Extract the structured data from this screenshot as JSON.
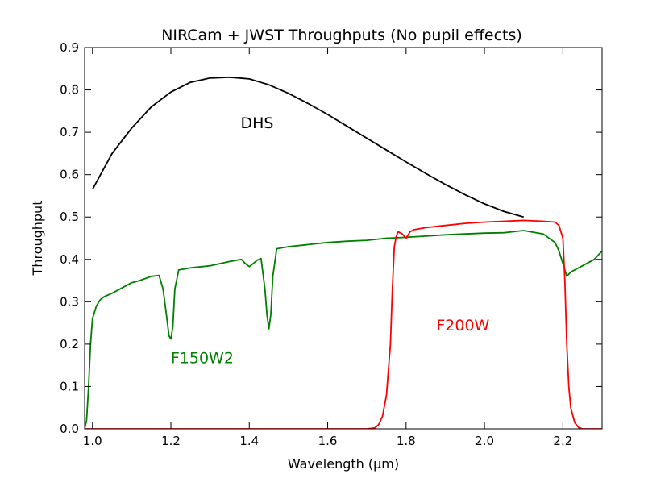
{
  "chart_data": {
    "type": "line",
    "title": "NIRCam + JWST Throughputs (No pupil effects)",
    "xlabel": "Wavelength (μm)",
    "ylabel": "Throughput",
    "xlim": [
      0.98,
      2.3
    ],
    "ylim": [
      0.0,
      0.9
    ],
    "xticks": [
      "1.0",
      "1.2",
      "1.4",
      "1.6",
      "1.8",
      "2.0",
      "2.2"
    ],
    "yticks": [
      "0.0",
      "0.1",
      "0.2",
      "0.3",
      "0.4",
      "0.5",
      "0.6",
      "0.7",
      "0.8",
      "0.9"
    ],
    "xtick_values": [
      1.0,
      1.2,
      1.4,
      1.6,
      1.8,
      2.0,
      2.2
    ],
    "ytick_values": [
      0.0,
      0.1,
      0.2,
      0.3,
      0.4,
      0.5,
      0.6,
      0.7,
      0.8,
      0.9
    ],
    "series": [
      {
        "name": "DHS",
        "label": "DHS",
        "color": "#000000",
        "label_at": [
          1.42,
          0.71
        ],
        "x": [
          1.0,
          1.05,
          1.1,
          1.15,
          1.2,
          1.25,
          1.3,
          1.35,
          1.4,
          1.45,
          1.5,
          1.55,
          1.6,
          1.65,
          1.7,
          1.75,
          1.8,
          1.85,
          1.9,
          1.95,
          2.0,
          2.05,
          2.1
        ],
        "y": [
          0.565,
          0.65,
          0.71,
          0.76,
          0.795,
          0.818,
          0.828,
          0.83,
          0.826,
          0.812,
          0.792,
          0.768,
          0.742,
          0.714,
          0.686,
          0.658,
          0.63,
          0.603,
          0.577,
          0.553,
          0.531,
          0.513,
          0.5
        ]
      },
      {
        "name": "F150W2",
        "label": "F150W2",
        "color": "#007f00",
        "label_at": [
          1.28,
          0.155
        ],
        "x": [
          0.98,
          0.985,
          0.99,
          0.995,
          1.0,
          1.01,
          1.02,
          1.03,
          1.05,
          1.08,
          1.1,
          1.12,
          1.15,
          1.17,
          1.18,
          1.19,
          1.195,
          1.2,
          1.205,
          1.21,
          1.22,
          1.25,
          1.3,
          1.35,
          1.38,
          1.39,
          1.4,
          1.41,
          1.42,
          1.43,
          1.44,
          1.445,
          1.45,
          1.455,
          1.46,
          1.47,
          1.5,
          1.55,
          1.6,
          1.65,
          1.7,
          1.75,
          1.8,
          1.85,
          1.9,
          1.95,
          2.0,
          2.05,
          2.1,
          2.15,
          2.18,
          2.19,
          2.2,
          2.21,
          2.22,
          2.25,
          2.28,
          2.3
        ],
        "y": [
          0.0,
          0.02,
          0.1,
          0.2,
          0.26,
          0.29,
          0.305,
          0.312,
          0.32,
          0.335,
          0.345,
          0.35,
          0.36,
          0.362,
          0.33,
          0.26,
          0.22,
          0.212,
          0.24,
          0.33,
          0.375,
          0.38,
          0.385,
          0.395,
          0.4,
          0.39,
          0.383,
          0.39,
          0.398,
          0.402,
          0.33,
          0.27,
          0.236,
          0.27,
          0.36,
          0.425,
          0.43,
          0.435,
          0.44,
          0.443,
          0.445,
          0.45,
          0.452,
          0.455,
          0.458,
          0.46,
          0.462,
          0.463,
          0.468,
          0.46,
          0.44,
          0.42,
          0.39,
          0.36,
          0.37,
          0.385,
          0.4,
          0.42
        ]
      },
      {
        "name": "F200W",
        "label": "F200W",
        "color": "#ff0000",
        "label_at": [
          1.945,
          0.232
        ],
        "x": [
          0.98,
          1.7,
          1.72,
          1.73,
          1.74,
          1.75,
          1.76,
          1.765,
          1.77,
          1.775,
          1.78,
          1.79,
          1.8,
          1.81,
          1.82,
          1.85,
          1.9,
          1.95,
          2.0,
          2.05,
          2.1,
          2.15,
          2.18,
          2.19,
          2.2,
          2.205,
          2.21,
          2.215,
          2.22,
          2.23,
          2.24,
          2.25,
          2.3
        ],
        "y": [
          0.0,
          0.0,
          0.002,
          0.01,
          0.03,
          0.08,
          0.2,
          0.33,
          0.43,
          0.455,
          0.465,
          0.46,
          0.45,
          0.465,
          0.47,
          0.475,
          0.48,
          0.485,
          0.488,
          0.49,
          0.492,
          0.49,
          0.488,
          0.48,
          0.45,
          0.35,
          0.2,
          0.1,
          0.05,
          0.015,
          0.003,
          0.0,
          0.0
        ]
      }
    ]
  }
}
